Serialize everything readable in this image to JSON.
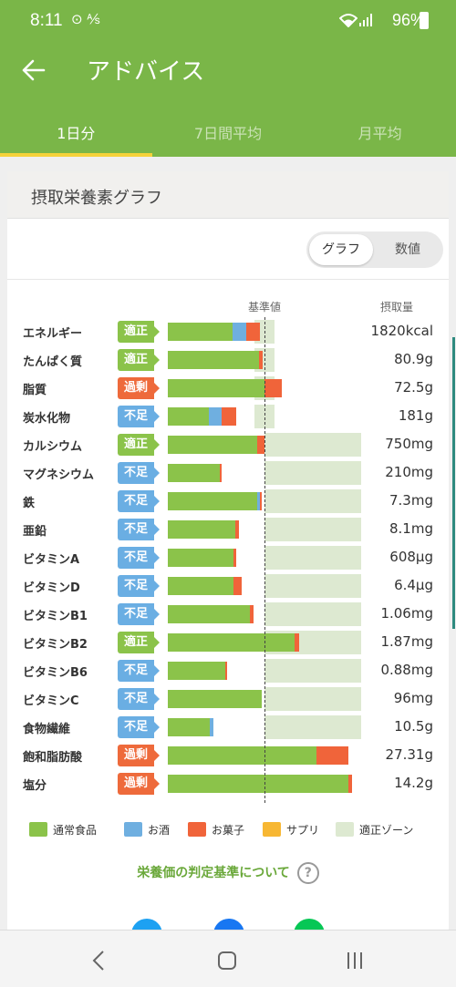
{
  "status_bar": {
    "time": "8:11",
    "icons": "⊙ ⅍",
    "battery": "96%"
  },
  "app_bar": {
    "title": "アドバイス"
  },
  "tabs": [
    {
      "label": "1日分",
      "active": true
    },
    {
      "label": "7日間平均",
      "active": false
    },
    {
      "label": "月平均",
      "active": false
    }
  ],
  "card": {
    "title": "摂取栄養素グラフ",
    "toggle": {
      "selected": "グラフ",
      "other": "数値"
    },
    "columns": {
      "baseline": "基準値",
      "intake": "摂取量"
    }
  },
  "colors": {
    "food": "#8bc34a",
    "alcohol": "#6fafe0",
    "snack": "#f0643a",
    "supplement": "#f7b733",
    "zone": "#dde9d1",
    "badge_ok": "#8bc34a",
    "badge_over": "#ee6a3b",
    "badge_under": "#6aaee3",
    "accent": "#7ab648"
  },
  "chart_data": {
    "type": "bar",
    "title": "摂取栄養素グラフ",
    "x_axis": "percent of baseline (基準値 = 100)",
    "series_names": [
      "通常食品",
      "お酒",
      "お菓子",
      "サプリ",
      "適正ゾーン"
    ],
    "rows": [
      {
        "name": "エネルギー",
        "status": "適正",
        "food": 67,
        "alcohol": 14,
        "snack": 14,
        "zone": [
          90,
          110
        ],
        "intake": "1820kcal"
      },
      {
        "name": "たんぱく質",
        "status": "適正",
        "food": 94,
        "alcohol": 0,
        "snack": 4,
        "zone": [
          90,
          110
        ],
        "intake": "80.9g"
      },
      {
        "name": "脂質",
        "status": "過剰",
        "food": 100,
        "alcohol": 0,
        "snack": 18,
        "zone": [
          90,
          110
        ],
        "intake": "72.5g"
      },
      {
        "name": "炭水化物",
        "status": "不足",
        "food": 42,
        "alcohol": 14,
        "snack": 15,
        "zone": [
          90,
          110
        ],
        "intake": "181g"
      },
      {
        "name": "カルシウム",
        "status": "適正",
        "food": 92,
        "alcohol": 0,
        "snack": 8,
        "zone": [
          100,
          200
        ],
        "intake": "750mg"
      },
      {
        "name": "マグネシウム",
        "status": "不足",
        "food": 54,
        "alcohol": 0,
        "snack": 2,
        "zone": [
          100,
          200
        ],
        "intake": "210mg"
      },
      {
        "name": "鉄",
        "status": "不足",
        "food": 92,
        "alcohol": 3,
        "snack": 2,
        "zone": [
          100,
          200
        ],
        "intake": "7.3mg"
      },
      {
        "name": "亜鉛",
        "status": "不足",
        "food": 70,
        "alcohol": 0,
        "snack": 4,
        "zone": [
          100,
          200
        ],
        "intake": "8.1mg"
      },
      {
        "name": "ビタミンA",
        "status": "不足",
        "food": 68,
        "alcohol": 0,
        "snack": 3,
        "zone": [
          100,
          200
        ],
        "intake": "608µg"
      },
      {
        "name": "ビタミンD",
        "status": "不足",
        "food": 68,
        "alcohol": 0,
        "snack": 8,
        "zone": [
          100,
          200
        ],
        "intake": "6.4µg"
      },
      {
        "name": "ビタミンB1",
        "status": "不足",
        "food": 85,
        "alcohol": 0,
        "snack": 4,
        "zone": [
          100,
          200
        ],
        "intake": "1.06mg"
      },
      {
        "name": "ビタミンB2",
        "status": "適正",
        "food": 131,
        "alcohol": 0,
        "snack": 5,
        "zone": [
          100,
          200
        ],
        "intake": "1.87mg"
      },
      {
        "name": "ビタミンB6",
        "status": "不足",
        "food": 59,
        "alcohol": 0,
        "snack": 2,
        "zone": [
          100,
          200
        ],
        "intake": "0.88mg"
      },
      {
        "name": "ビタミンC",
        "status": "不足",
        "food": 97,
        "alcohol": 0,
        "snack": 0,
        "zone": [
          100,
          200
        ],
        "intake": "96mg"
      },
      {
        "name": "食物繊維",
        "status": "不足",
        "food": 43,
        "alcohol": 4,
        "snack": 0,
        "zone": [
          100,
          200
        ],
        "intake": "10.5g"
      },
      {
        "name": "飽和脂肪酸",
        "status": "過剰",
        "food": 154,
        "alcohol": 0,
        "snack": 33,
        "zone": [],
        "intake": "27.31g"
      },
      {
        "name": "塩分",
        "status": "過剰",
        "food": 187,
        "alcohol": 0,
        "snack": 4,
        "zone": [],
        "intake": "14.2g"
      }
    ]
  },
  "legend": [
    {
      "label": "通常食品",
      "color": "#8bc34a"
    },
    {
      "label": "お酒",
      "color": "#6fafe0"
    },
    {
      "label": "お菓子",
      "color": "#f0643a"
    },
    {
      "label": "サプリ",
      "color": "#f7b733"
    },
    {
      "label": "適正ゾーン",
      "color": "#dde9d1"
    }
  ],
  "criteria_link": "栄養価の判定基準について",
  "help_icon": "?",
  "share_icons": [
    {
      "name": "twitter-icon",
      "color": "#1da1f2"
    },
    {
      "name": "facebook-icon",
      "color": "#1877f2"
    },
    {
      "name": "line-icon",
      "color": "#06c755"
    }
  ]
}
